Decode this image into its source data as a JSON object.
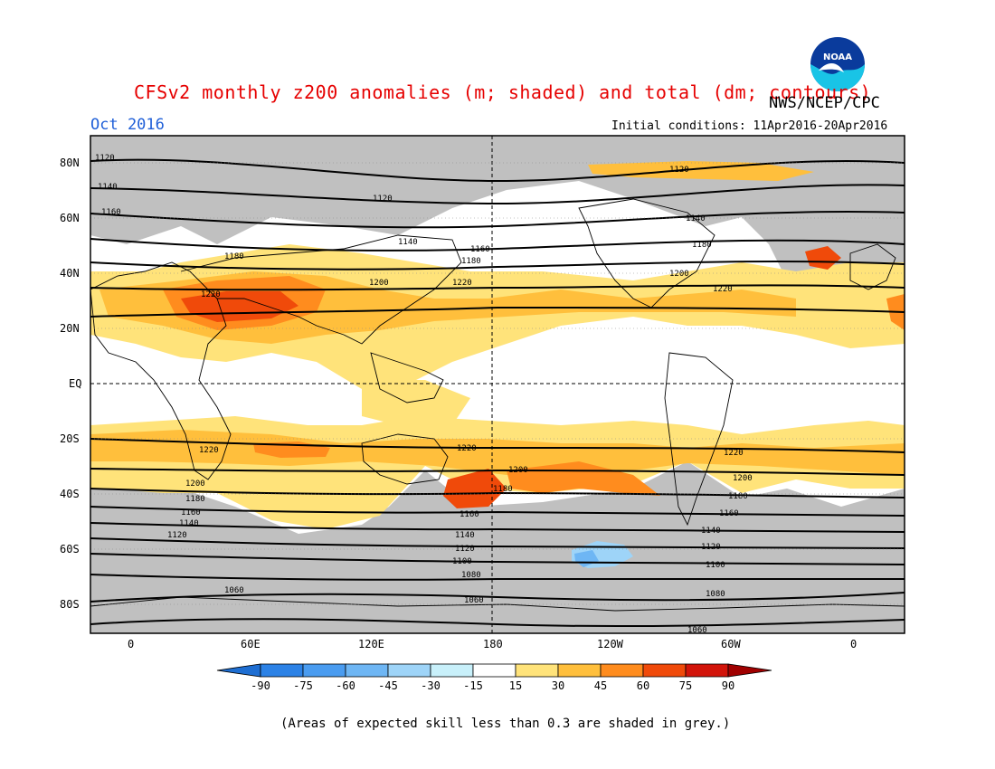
{
  "header": {
    "title": "CFSv2 monthly z200 anomalies (m; shaded) and total (dm; contours)",
    "agency": "NWS/NCEP/CPC",
    "logo_text": "NOAA",
    "period": "Oct 2016",
    "initial_conditions": "Initial conditions: 11Apr2016-20Apr2016"
  },
  "map": {
    "lat_labels": [
      "80N",
      "60N",
      "40N",
      "20N",
      "EQ",
      "20S",
      "40S",
      "60S",
      "80S"
    ],
    "lon_labels": [
      "0",
      "60E",
      "120E",
      "180",
      "120W",
      "60W",
      "0"
    ],
    "contour_labels": [
      "1120",
      "1140",
      "1160",
      "1180",
      "1200",
      "1220",
      "1100",
      "1080",
      "1060"
    ]
  },
  "colorbar": {
    "ticks": [
      "-90",
      "-75",
      "-60",
      "-45",
      "-30",
      "-15",
      "15",
      "30",
      "45",
      "60",
      "75",
      "90"
    ],
    "colors": [
      "#1e6ed2",
      "#2c82e6",
      "#4a9cf0",
      "#6eb6f4",
      "#9ed4f8",
      "#c8f0fa",
      "#ffffff",
      "#ffe37a",
      "#ffbf3c",
      "#ff8c1e",
      "#f04a0a",
      "#d2140a",
      "#a00000"
    ]
  },
  "footnote": "(Areas of expected skill less than 0.3 are shaded in grey.)"
}
